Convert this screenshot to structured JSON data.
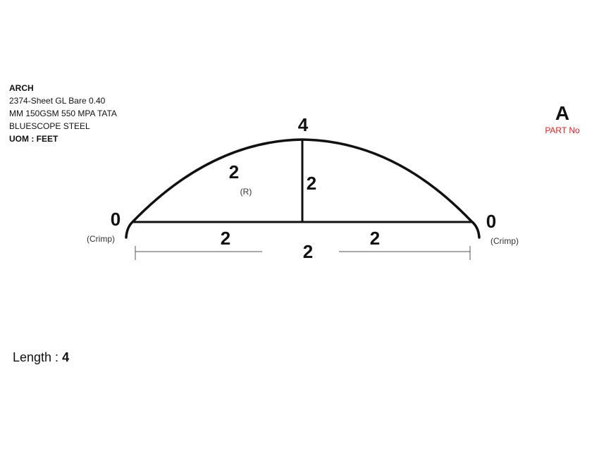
{
  "spec": {
    "title": "ARCH",
    "lines": [
      "2374-Sheet GL Bare 0.40",
      "MM 150GSM 550 MPA TATA",
      "BLUESCOPE STEEL"
    ],
    "uom": "UOM : FEET"
  },
  "part": {
    "letter": "A",
    "label": "PART No"
  },
  "diagram": {
    "top_label": "4",
    "radius_value": "2",
    "radius_label": "(R)",
    "height_value": "2",
    "left_end_value": "0",
    "left_crimp": "(Crimp)",
    "right_end_value": "0",
    "right_crimp": "(Crimp)",
    "left_half_value": "2",
    "right_half_value": "2",
    "span_value": "2"
  },
  "length": {
    "label": "Length : ",
    "value": "4"
  },
  "colors": {
    "line": "#111111",
    "part_label": "#e02020"
  }
}
